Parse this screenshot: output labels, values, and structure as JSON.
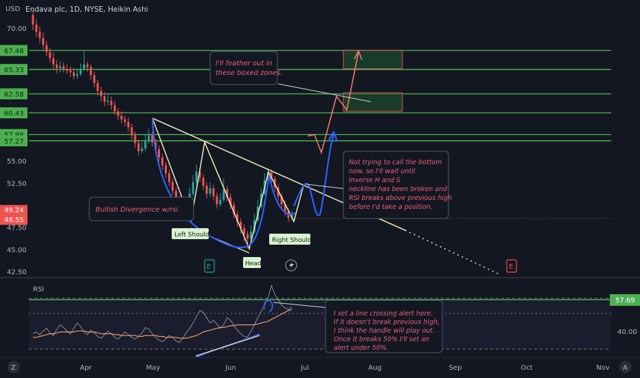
{
  "chart_data": {
    "type": "candlestick",
    "header": {
      "currency": "USD",
      "symbol_line": "Endava plc, 1D, NYSE, Heikin Ashi"
    },
    "price_axis": {
      "range": [
        42.5,
        72.0
      ],
      "ticks": [
        "70.00",
        "55.00",
        "52.50",
        "47.50",
        "45.00",
        "42.50"
      ]
    },
    "level_lines": [
      {
        "value": 67.48,
        "label": "67.48"
      },
      {
        "value": 65.33,
        "label": "65.33"
      },
      {
        "value": 62.58,
        "label": "62.58"
      },
      {
        "value": 60.43,
        "label": "60.43"
      },
      {
        "value": 57.98,
        "label": "57.98"
      },
      {
        "value": 57.27,
        "label": "57.27"
      }
    ],
    "price_tags": [
      {
        "value": 49.24,
        "label": "49.24",
        "color": "#ef5350"
      },
      {
        "value": 48.55,
        "label": "48.55",
        "color": "#ef5350"
      }
    ],
    "time_axis": {
      "labels": [
        "Apr",
        "May",
        "Jun",
        "Jul",
        "Aug",
        "Sep",
        "Oct",
        "Nov"
      ]
    },
    "candles": [
      {
        "o": 71.5,
        "c": 70.4,
        "h": 72.0,
        "l": 69.8
      },
      {
        "o": 70.4,
        "c": 69.6,
        "h": 71.0,
        "l": 69.0
      },
      {
        "o": 69.6,
        "c": 68.9,
        "h": 70.2,
        "l": 68.3
      },
      {
        "o": 68.9,
        "c": 68.1,
        "h": 69.5,
        "l": 67.6
      },
      {
        "o": 68.1,
        "c": 67.3,
        "h": 68.6,
        "l": 66.8
      },
      {
        "o": 67.3,
        "c": 66.6,
        "h": 67.8,
        "l": 66.1
      },
      {
        "o": 66.6,
        "c": 65.9,
        "h": 67.2,
        "l": 65.4
      },
      {
        "o": 65.9,
        "c": 65.5,
        "h": 66.4,
        "l": 64.9
      },
      {
        "o": 65.5,
        "c": 65.7,
        "h": 66.3,
        "l": 65.0
      },
      {
        "o": 65.7,
        "c": 65.4,
        "h": 66.1,
        "l": 65.0
      },
      {
        "o": 65.4,
        "c": 65.2,
        "h": 65.9,
        "l": 64.8
      },
      {
        "o": 65.2,
        "c": 65.0,
        "h": 65.7,
        "l": 64.5
      },
      {
        "o": 65.0,
        "c": 64.6,
        "h": 65.5,
        "l": 64.2
      },
      {
        "o": 64.6,
        "c": 64.8,
        "h": 65.3,
        "l": 64.3
      },
      {
        "o": 64.8,
        "c": 65.4,
        "h": 66.0,
        "l": 64.6
      },
      {
        "o": 65.4,
        "c": 65.9,
        "h": 67.4,
        "l": 65.2
      },
      {
        "o": 65.9,
        "c": 65.6,
        "h": 66.2,
        "l": 65.1
      },
      {
        "o": 65.6,
        "c": 64.7,
        "h": 65.9,
        "l": 64.2
      },
      {
        "o": 64.7,
        "c": 63.8,
        "h": 65.1,
        "l": 63.3
      },
      {
        "o": 63.8,
        "c": 62.9,
        "h": 64.2,
        "l": 62.4
      },
      {
        "o": 62.9,
        "c": 62.3,
        "h": 63.4,
        "l": 61.7
      },
      {
        "o": 62.3,
        "c": 61.7,
        "h": 62.8,
        "l": 61.2
      },
      {
        "o": 61.7,
        "c": 61.8,
        "h": 62.6,
        "l": 61.3
      },
      {
        "o": 61.8,
        "c": 61.3,
        "h": 62.3,
        "l": 60.8
      },
      {
        "o": 61.3,
        "c": 60.6,
        "h": 61.8,
        "l": 60.2
      },
      {
        "o": 60.6,
        "c": 60.1,
        "h": 61.0,
        "l": 59.6
      },
      {
        "o": 60.1,
        "c": 59.7,
        "h": 60.6,
        "l": 59.2
      },
      {
        "o": 59.7,
        "c": 59.4,
        "h": 60.1,
        "l": 58.9
      },
      {
        "o": 59.4,
        "c": 58.8,
        "h": 59.9,
        "l": 58.3
      },
      {
        "o": 58.8,
        "c": 57.9,
        "h": 59.2,
        "l": 57.4
      },
      {
        "o": 57.9,
        "c": 57.0,
        "h": 58.3,
        "l": 56.5
      },
      {
        "o": 57.0,
        "c": 56.1,
        "h": 57.4,
        "l": 55.6
      },
      {
        "o": 56.1,
        "c": 56.4,
        "h": 57.1,
        "l": 55.8
      },
      {
        "o": 56.4,
        "c": 57.2,
        "h": 58.0,
        "l": 56.1
      },
      {
        "o": 57.2,
        "c": 57.9,
        "h": 58.6,
        "l": 56.9
      },
      {
        "o": 57.9,
        "c": 57.1,
        "h": 58.3,
        "l": 56.6
      },
      {
        "o": 57.1,
        "c": 56.3,
        "h": 57.5,
        "l": 55.8
      },
      {
        "o": 56.3,
        "c": 55.4,
        "h": 56.7,
        "l": 54.9
      },
      {
        "o": 55.4,
        "c": 54.5,
        "h": 55.8,
        "l": 54.0
      },
      {
        "o": 54.5,
        "c": 53.6,
        "h": 54.9,
        "l": 53.1
      },
      {
        "o": 53.6,
        "c": 52.6,
        "h": 54.0,
        "l": 52.1
      },
      {
        "o": 52.6,
        "c": 51.6,
        "h": 53.0,
        "l": 51.1
      },
      {
        "o": 51.6,
        "c": 50.6,
        "h": 52.0,
        "l": 50.1
      },
      {
        "o": 50.6,
        "c": 49.9,
        "h": 51.0,
        "l": 49.4
      },
      {
        "o": 49.9,
        "c": 49.5,
        "h": 50.3,
        "l": 48.9
      },
      {
        "o": 49.5,
        "c": 50.2,
        "h": 50.8,
        "l": 49.2
      },
      {
        "o": 50.2,
        "c": 51.3,
        "h": 52.0,
        "l": 49.9
      },
      {
        "o": 51.3,
        "c": 52.6,
        "h": 53.4,
        "l": 51.0
      },
      {
        "o": 52.6,
        "c": 53.8,
        "h": 54.6,
        "l": 52.3
      },
      {
        "o": 53.8,
        "c": 53.1,
        "h": 54.2,
        "l": 52.6
      },
      {
        "o": 53.1,
        "c": 52.2,
        "h": 53.5,
        "l": 51.7
      },
      {
        "o": 52.2,
        "c": 51.3,
        "h": 52.6,
        "l": 50.8
      },
      {
        "o": 51.3,
        "c": 51.9,
        "h": 52.6,
        "l": 50.9
      },
      {
        "o": 51.9,
        "c": 51.0,
        "h": 52.3,
        "l": 50.5
      },
      {
        "o": 51.0,
        "c": 50.1,
        "h": 51.4,
        "l": 49.6
      },
      {
        "o": 50.1,
        "c": 50.6,
        "h": 51.3,
        "l": 49.8
      },
      {
        "o": 50.6,
        "c": 51.8,
        "h": 53.0,
        "l": 50.3
      },
      {
        "o": 51.8,
        "c": 50.9,
        "h": 52.2,
        "l": 50.4
      },
      {
        "o": 50.9,
        "c": 50.0,
        "h": 51.3,
        "l": 49.5
      },
      {
        "o": 50.0,
        "c": 49.0,
        "h": 50.4,
        "l": 48.5
      },
      {
        "o": 49.0,
        "c": 48.1,
        "h": 49.4,
        "l": 47.6
      },
      {
        "o": 48.1,
        "c": 47.4,
        "h": 48.5,
        "l": 46.8
      },
      {
        "o": 47.4,
        "c": 46.7,
        "h": 47.8,
        "l": 45.9
      },
      {
        "o": 46.7,
        "c": 46.2,
        "h": 47.1,
        "l": 45.1
      },
      {
        "o": 46.2,
        "c": 47.0,
        "h": 47.7,
        "l": 45.9
      },
      {
        "o": 47.0,
        "c": 48.3,
        "h": 49.0,
        "l": 46.8
      },
      {
        "o": 48.3,
        "c": 49.8,
        "h": 50.6,
        "l": 48.1
      },
      {
        "o": 49.8,
        "c": 51.3,
        "h": 52.0,
        "l": 49.6
      },
      {
        "o": 51.3,
        "c": 52.8,
        "h": 53.6,
        "l": 51.1
      },
      {
        "o": 52.8,
        "c": 53.7,
        "h": 54.2,
        "l": 52.6
      },
      {
        "o": 53.7,
        "c": 53.0,
        "h": 54.0,
        "l": 52.5
      },
      {
        "o": 53.0,
        "c": 52.0,
        "h": 53.3,
        "l": 51.5
      },
      {
        "o": 52.0,
        "c": 51.0,
        "h": 52.4,
        "l": 50.5
      },
      {
        "o": 51.0,
        "c": 50.1,
        "h": 51.4,
        "l": 49.6
      },
      {
        "o": 50.1,
        "c": 49.3,
        "h": 50.5,
        "l": 48.8
      },
      {
        "o": 49.3,
        "c": 48.6,
        "h": 49.6,
        "l": 48.1
      },
      {
        "o": 48.6,
        "c": 48.9,
        "h": 49.4,
        "l": 48.2
      }
    ],
    "rsi": {
      "label": "RSI",
      "value_tag": "57.69",
      "axis_tick": "40.00",
      "range": [
        0,
        100
      ],
      "level_lines": [
        70,
        50,
        30
      ],
      "rsi_values": [
        28,
        30,
        27,
        31,
        34,
        29,
        26,
        33,
        38,
        35,
        31,
        28,
        34,
        40,
        36,
        30,
        27,
        32,
        29,
        25,
        23,
        27,
        31,
        28,
        24,
        22,
        26,
        30,
        27,
        24,
        22,
        25,
        29,
        35,
        33,
        28,
        24,
        21,
        19,
        22,
        26,
        24,
        20,
        18,
        23,
        29,
        34,
        40,
        47,
        54,
        52,
        46,
        40,
        43,
        39,
        34,
        38,
        46,
        43,
        37,
        32,
        28,
        25,
        24,
        31,
        38,
        46,
        53,
        60,
        68,
        82,
        72,
        66,
        60,
        57,
        55,
        58
      ],
      "ma_values": [
        24,
        24,
        25,
        26,
        27,
        28,
        28,
        29,
        30,
        30,
        30,
        30,
        30,
        31,
        31,
        31,
        30,
        30,
        30,
        29,
        28,
        28,
        28,
        28,
        27,
        27,
        26,
        26,
        26,
        26,
        26,
        25,
        25,
        26,
        26,
        26,
        26,
        25,
        25,
        24,
        24,
        24,
        24,
        23,
        23,
        23,
        24,
        25,
        26,
        28,
        30,
        31,
        32,
        33,
        34,
        35,
        35,
        36,
        37,
        37,
        38,
        38,
        38,
        38,
        38,
        38,
        39,
        40,
        41,
        42,
        44,
        46,
        48,
        50,
        52,
        54,
        55
      ]
    },
    "annotations": {
      "left_shoulder": "Left Shoulder",
      "head": "Head",
      "right_shoulder": "Right Shoulder",
      "feather_note": "I'll feather out in these boxed zones.",
      "divergence_note": "Bullish Divergence w/rsi",
      "bottom_note": "Not trying to call the bottom now, so I'll wait until Inverse H and S neckline has been broken and RSI breaks above previous high before I'd take a position.",
      "alert_note": "I set a line crossing alert here. If it doesn't break previous high, I think the handle will play out. Once it breaks 50% I'll set an alert under 50%.",
      "earnings_marker": "E"
    },
    "side_icons": {
      "top": "Z",
      "bottom": "A"
    },
    "colors": {
      "background": "#131722",
      "up": "#26a69a",
      "down": "#ef5350",
      "level_line": "#4caf50",
      "trendline": "#e8e3b0",
      "hand_drawn": "#2962ff",
      "projection": "#ef7a6a",
      "rsi_line": "#8a8f99",
      "rsi_ma": "#f0a060",
      "note_text": "#ef5f7a"
    }
  }
}
